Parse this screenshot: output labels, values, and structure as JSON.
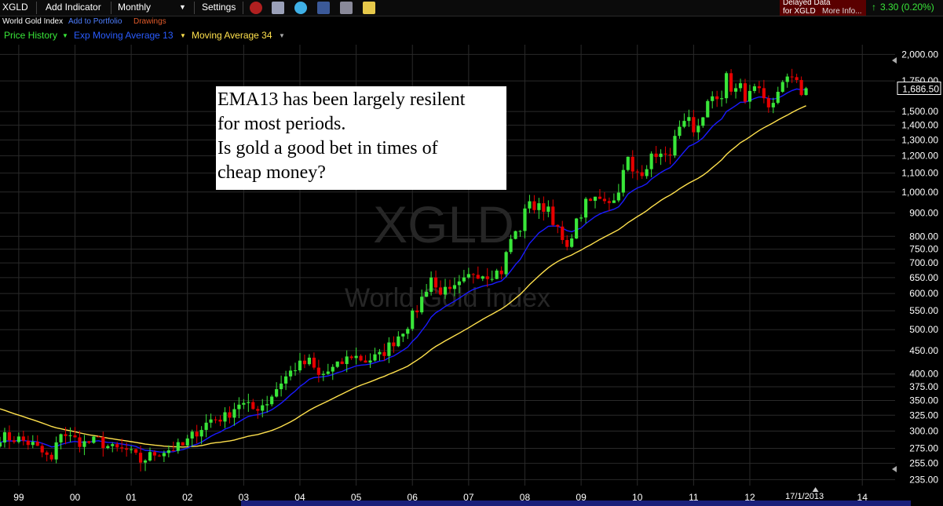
{
  "toolbar": {
    "symbol": "XGLD",
    "add_indicator": "Add Indicator",
    "period": "Monthly",
    "settings": "Settings",
    "delayed_line1": "Delayed Data",
    "delayed_line2": "for XGLD",
    "more_info": "More Info...",
    "change": "3.30 (0.20%)",
    "icons": [
      "alarm-clock-icon",
      "print-icon",
      "twitter-icon",
      "facebook-icon",
      "email-icon",
      "note-icon"
    ]
  },
  "subbar": {
    "name": "World Gold Index",
    "add_to_portfolio": "Add to Portfolio",
    "drawings": "Drawings"
  },
  "legend": {
    "price_history": "Price History",
    "ema": "Exp Moving Average 13",
    "ma": "Moving Average 34"
  },
  "colors": {
    "up": "#39e639",
    "down": "#e60000",
    "ema": "#1a1aff",
    "ma": "#ffe14d",
    "price_history": "#39e639",
    "ema_label": "#2a5cff",
    "ma_label": "#ffe14d",
    "change": "#39e639"
  },
  "watermark": {
    "symbol": "XGLD",
    "name": "World Gold Index"
  },
  "annotation": {
    "lines": [
      "EMA13 has been largely resilent",
      "for most periods.",
      "Is gold a good bet in times of",
      "cheap money?"
    ]
  },
  "last_price": "1,686.50",
  "date_label": "17/1/2013",
  "chart_data": {
    "type": "candlestick",
    "title": "",
    "xlabel": "",
    "ylabel": "",
    "y_scale": "log",
    "ylim": [
      228,
      2100
    ],
    "x_range": [
      "1998-09",
      "2014-08"
    ],
    "x_ticks": [
      {
        "label": "99",
        "date": "1999-01"
      },
      {
        "label": "00",
        "date": "2000-01"
      },
      {
        "label": "01",
        "date": "2001-01"
      },
      {
        "label": "02",
        "date": "2002-01"
      },
      {
        "label": "03",
        "date": "2003-01"
      },
      {
        "label": "04",
        "date": "2004-01"
      },
      {
        "label": "05",
        "date": "2005-01"
      },
      {
        "label": "06",
        "date": "2006-01"
      },
      {
        "label": "07",
        "date": "2007-01"
      },
      {
        "label": "08",
        "date": "2008-01"
      },
      {
        "label": "09",
        "date": "2009-01"
      },
      {
        "label": "10",
        "date": "2010-01"
      },
      {
        "label": "11",
        "date": "2011-01"
      },
      {
        "label": "12",
        "date": "2012-01"
      },
      {
        "label": "14",
        "date": "2014-01"
      }
    ],
    "y_ticks": [
      {
        "value": 2000,
        "label": "2,000.00"
      },
      {
        "value": 1750,
        "label": "1,750.00"
      },
      {
        "value": 1500,
        "label": "1,500.00"
      },
      {
        "value": 1400,
        "label": "1,400.00"
      },
      {
        "value": 1300,
        "label": "1,300.00"
      },
      {
        "value": 1200,
        "label": "1,200.00"
      },
      {
        "value": 1100,
        "label": "1,100.00"
      },
      {
        "value": 1000,
        "label": "1,000.00"
      },
      {
        "value": 900,
        "label": "900.00"
      },
      {
        "value": 800,
        "label": "800.00"
      },
      {
        "value": 750,
        "label": "750.00"
      },
      {
        "value": 700,
        "label": "700.00"
      },
      {
        "value": 650,
        "label": "650.00"
      },
      {
        "value": 600,
        "label": "600.00"
      },
      {
        "value": 550,
        "label": "550.00"
      },
      {
        "value": 500,
        "label": "500.00"
      },
      {
        "value": 450,
        "label": "450.00"
      },
      {
        "value": 400,
        "label": "400.00"
      },
      {
        "value": 375,
        "label": "375.00"
      },
      {
        "value": 350,
        "label": "350.00"
      },
      {
        "value": 325,
        "label": "325.00"
      },
      {
        "value": 300,
        "label": "300.00"
      },
      {
        "value": 275,
        "label": "275.00"
      },
      {
        "value": 255,
        "label": "255.00"
      },
      {
        "value": 235,
        "label": "235.00"
      }
    ],
    "close_anchors": [
      [
        "1998-09",
        292
      ],
      [
        "1999-01",
        288
      ],
      [
        "1999-04",
        280
      ],
      [
        "1999-08",
        258
      ],
      [
        "1999-10",
        300
      ],
      [
        "1999-12",
        290
      ],
      [
        "2000-03",
        282
      ],
      [
        "2000-06",
        286
      ],
      [
        "2000-09",
        274
      ],
      [
        "2000-12",
        272
      ],
      [
        "2001-03",
        258
      ],
      [
        "2001-06",
        268
      ],
      [
        "2001-08",
        272
      ],
      [
        "2001-12",
        278
      ],
      [
        "2002-03",
        300
      ],
      [
        "2002-06",
        318
      ],
      [
        "2002-09",
        322
      ],
      [
        "2002-12",
        346
      ],
      [
        "2003-03",
        335
      ],
      [
        "2003-06",
        348
      ],
      [
        "2003-09",
        385
      ],
      [
        "2003-12",
        414
      ],
      [
        "2004-03",
        425
      ],
      [
        "2004-05",
        395
      ],
      [
        "2004-09",
        415
      ],
      [
        "2004-12",
        440
      ],
      [
        "2005-03",
        428
      ],
      [
        "2005-06",
        437
      ],
      [
        "2005-09",
        472
      ],
      [
        "2005-12",
        515
      ],
      [
        "2006-02",
        555
      ],
      [
        "2006-05",
        652
      ],
      [
        "2006-06",
        615
      ],
      [
        "2006-09",
        600
      ],
      [
        "2006-12",
        635
      ],
      [
        "2007-02",
        668
      ],
      [
        "2007-05",
        662
      ],
      [
        "2007-08",
        672
      ],
      [
        "2007-10",
        790
      ],
      [
        "2007-12",
        835
      ],
      [
        "2008-02",
        970
      ],
      [
        "2008-03",
        920
      ],
      [
        "2008-06",
        930
      ],
      [
        "2008-08",
        820
      ],
      [
        "2008-10",
        740
      ],
      [
        "2008-11",
        815
      ],
      [
        "2009-02",
        940
      ],
      [
        "2009-05",
        980
      ],
      [
        "2009-08",
        955
      ],
      [
        "2009-11",
        1180
      ],
      [
        "2009-12",
        1095
      ],
      [
        "2010-02",
        1115
      ],
      [
        "2010-05",
        1220
      ],
      [
        "2010-07",
        1180
      ],
      [
        "2010-10",
        1360
      ],
      [
        "2010-12",
        1420
      ],
      [
        "2011-01",
        1330
      ],
      [
        "2011-04",
        1560
      ],
      [
        "2011-07",
        1630
      ],
      [
        "2011-08",
        1830
      ],
      [
        "2011-09",
        1620
      ],
      [
        "2011-11",
        1745
      ],
      [
        "2011-12",
        1565
      ],
      [
        "2012-02",
        1720
      ],
      [
        "2012-05",
        1560
      ],
      [
        "2012-07",
        1610
      ],
      [
        "2012-09",
        1775
      ],
      [
        "2012-11",
        1715
      ],
      [
        "2012-12",
        1660
      ],
      [
        "2013-01",
        1686.5
      ]
    ],
    "series": [
      {
        "name": "Price History",
        "kind": "candles"
      },
      {
        "name": "Exp Moving Average 13",
        "kind": "ema",
        "period": 13
      },
      {
        "name": "Moving Average 34",
        "kind": "sma",
        "period": 34
      }
    ],
    "grid": true,
    "legend_position": "top-left"
  }
}
